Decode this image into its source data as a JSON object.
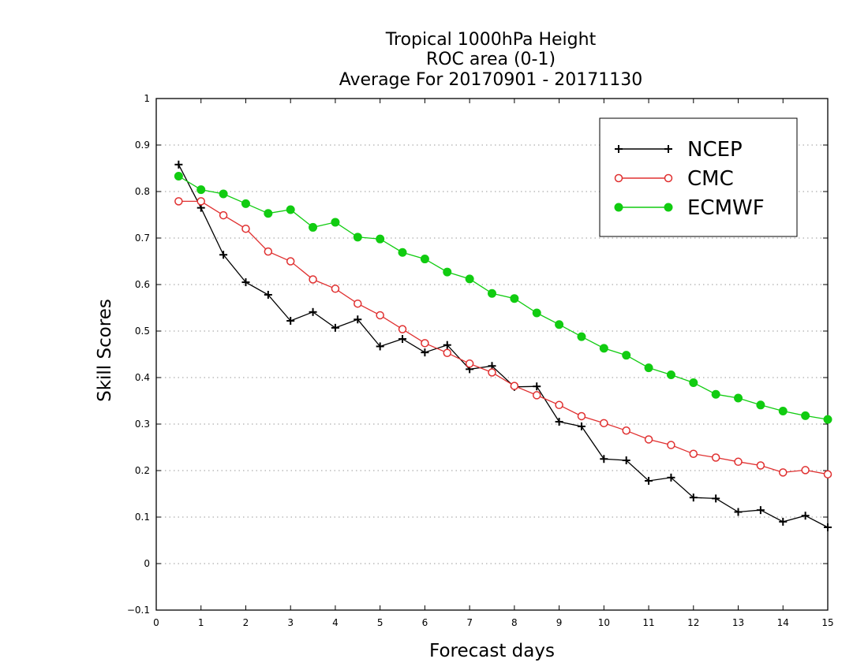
{
  "chart_data": {
    "type": "line",
    "title_lines": [
      "Tropical 1000hPa Height",
      "ROC area (0-1)",
      "Average For 20170901 - 20171130"
    ],
    "xlabel": "Forecast days",
    "ylabel": "Skill Scores",
    "xlim": [
      0,
      15
    ],
    "ylim": [
      -0.1,
      1
    ],
    "xticks": [
      0,
      1,
      2,
      3,
      4,
      5,
      6,
      7,
      8,
      9,
      10,
      11,
      12,
      13,
      14,
      15
    ],
    "yticks": [
      -0.1,
      0,
      0.1,
      0.2,
      0.3,
      0.4,
      0.5,
      0.6,
      0.7,
      0.8,
      0.9,
      1
    ],
    "ytick_labels": [
      "−0.1",
      "0",
      "0.1",
      "0.2",
      "0.3",
      "0.4",
      "0.5",
      "0.6",
      "0.7",
      "0.8",
      "0.9",
      "1"
    ],
    "grid": "horizontal dotted",
    "legend_placement": "top-right",
    "x": [
      0.5,
      1,
      1.5,
      2,
      2.5,
      3,
      3.5,
      4,
      4.5,
      5,
      5.5,
      6,
      6.5,
      7,
      7.5,
      8,
      8.5,
      9,
      9.5,
      10,
      10.5,
      11,
      11.5,
      12,
      12.5,
      13,
      13.5,
      14,
      14.5,
      15
    ],
    "series": [
      {
        "name": "NCEP",
        "color": "#000000",
        "marker": "plus",
        "values": [
          0.858,
          0.765,
          0.664,
          0.605,
          0.578,
          0.522,
          0.541,
          0.507,
          0.525,
          0.467,
          0.483,
          0.454,
          0.47,
          0.418,
          0.425,
          0.38,
          0.381,
          0.305,
          0.295,
          0.225,
          0.222,
          0.178,
          0.185,
          0.142,
          0.14,
          0.111,
          0.115,
          0.09,
          0.103,
          0.078
        ]
      },
      {
        "name": "CMC",
        "color": "#e03030",
        "marker": "open-circle",
        "values": [
          0.779,
          0.779,
          0.749,
          0.72,
          0.671,
          0.65,
          0.611,
          0.591,
          0.559,
          0.534,
          0.504,
          0.474,
          0.453,
          0.43,
          0.411,
          0.382,
          0.362,
          0.341,
          0.317,
          0.302,
          0.286,
          0.267,
          0.255,
          0.236,
          0.228,
          0.219,
          0.211,
          0.196,
          0.201,
          0.192
        ]
      },
      {
        "name": "ECMWF",
        "color": "#11cc11",
        "marker": "filled-circle",
        "values": [
          0.833,
          0.804,
          0.795,
          0.774,
          0.753,
          0.761,
          0.723,
          0.734,
          0.702,
          0.698,
          0.669,
          0.655,
          0.627,
          0.612,
          0.581,
          0.57,
          0.539,
          0.514,
          0.488,
          0.463,
          0.448,
          0.421,
          0.406,
          0.389,
          0.364,
          0.356,
          0.341,
          0.328,
          0.318,
          0.31
        ]
      }
    ]
  }
}
